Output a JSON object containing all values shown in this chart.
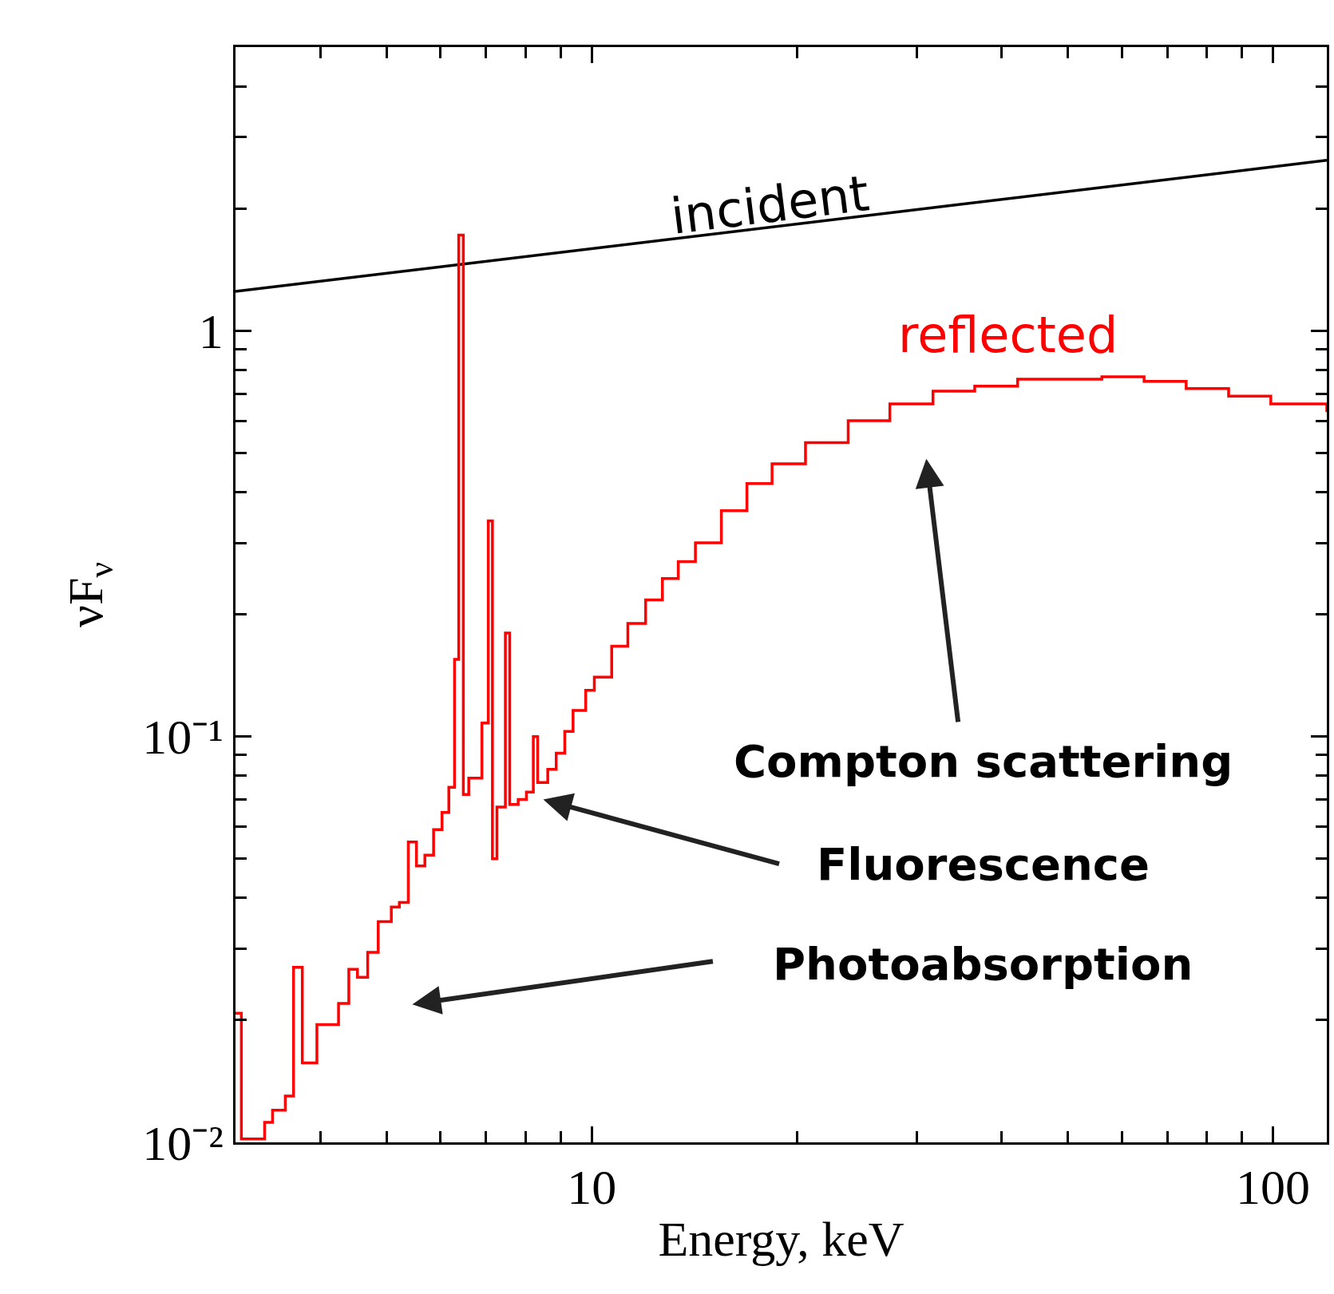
{
  "chart_data": {
    "type": "step",
    "xlabel": "Energy, keV",
    "ylabel": "νF$_{ν}$",
    "log": "xy",
    "legend": false,
    "line_style": "solid",
    "marker": "none",
    "xlim": [
      3,
      120
    ],
    "ylim": [
      0.01,
      5
    ],
    "xticks": [
      10,
      100
    ],
    "yticks": [
      {
        "value": 0.01,
        "label": "10⁻²"
      },
      {
        "value": 0.1,
        "label": "10⁻¹"
      },
      1
    ],
    "series": [
      {
        "name": "incident",
        "type": "line",
        "color": "#000000",
        "x": [
          3,
          120
        ],
        "values": [
          1.25,
          2.63
        ]
      },
      {
        "name": "reflected",
        "color": "#ff0000",
        "x": [
          3.0,
          3.06,
          3.31,
          3.4,
          3.55,
          3.65,
          3.76,
          3.95,
          4.1,
          4.25,
          4.4,
          4.53,
          4.69,
          4.86,
          5.08,
          5.22,
          5.38,
          5.53,
          5.69,
          5.86,
          6.03,
          6.17,
          6.29,
          6.38,
          6.48,
          6.6,
          6.9,
          7.05,
          7.15,
          7.26,
          7.47,
          7.58,
          7.8,
          8.02,
          8.21,
          8.33,
          8.62,
          8.87,
          9.13,
          9.39,
          9.8,
          10.09,
          10.7,
          11.3,
          12.0,
          12.7,
          13.4,
          14.2,
          15.5,
          16.9,
          18.4,
          20.6,
          23.8,
          27.4,
          31.7,
          36.5,
          42.2,
          48.6,
          56.1,
          64.7,
          74.6,
          86.1,
          99.3,
          120
        ],
        "values": [
          0.0208,
          0.0102,
          0.0112,
          0.012,
          0.013,
          0.027,
          0.0157,
          0.0195,
          0.0195,
          0.022,
          0.0267,
          0.0255,
          0.0294,
          0.035,
          0.038,
          0.039,
          0.055,
          0.048,
          0.051,
          0.059,
          0.065,
          0.075,
          0.155,
          1.72,
          0.072,
          0.079,
          0.108,
          0.34,
          0.05,
          0.067,
          0.18,
          0.068,
          0.07,
          0.073,
          0.1,
          0.077,
          0.083,
          0.091,
          0.103,
          0.116,
          0.13,
          0.14,
          0.167,
          0.19,
          0.217,
          0.245,
          0.27,
          0.3,
          0.36,
          0.42,
          0.47,
          0.53,
          0.6,
          0.66,
          0.71,
          0.73,
          0.76,
          0.76,
          0.77,
          0.75,
          0.72,
          0.69,
          0.66,
          0.63
        ]
      }
    ],
    "annotations": [
      "Compton scattering",
      "Fluorescence",
      "Photoabsorption"
    ]
  }
}
